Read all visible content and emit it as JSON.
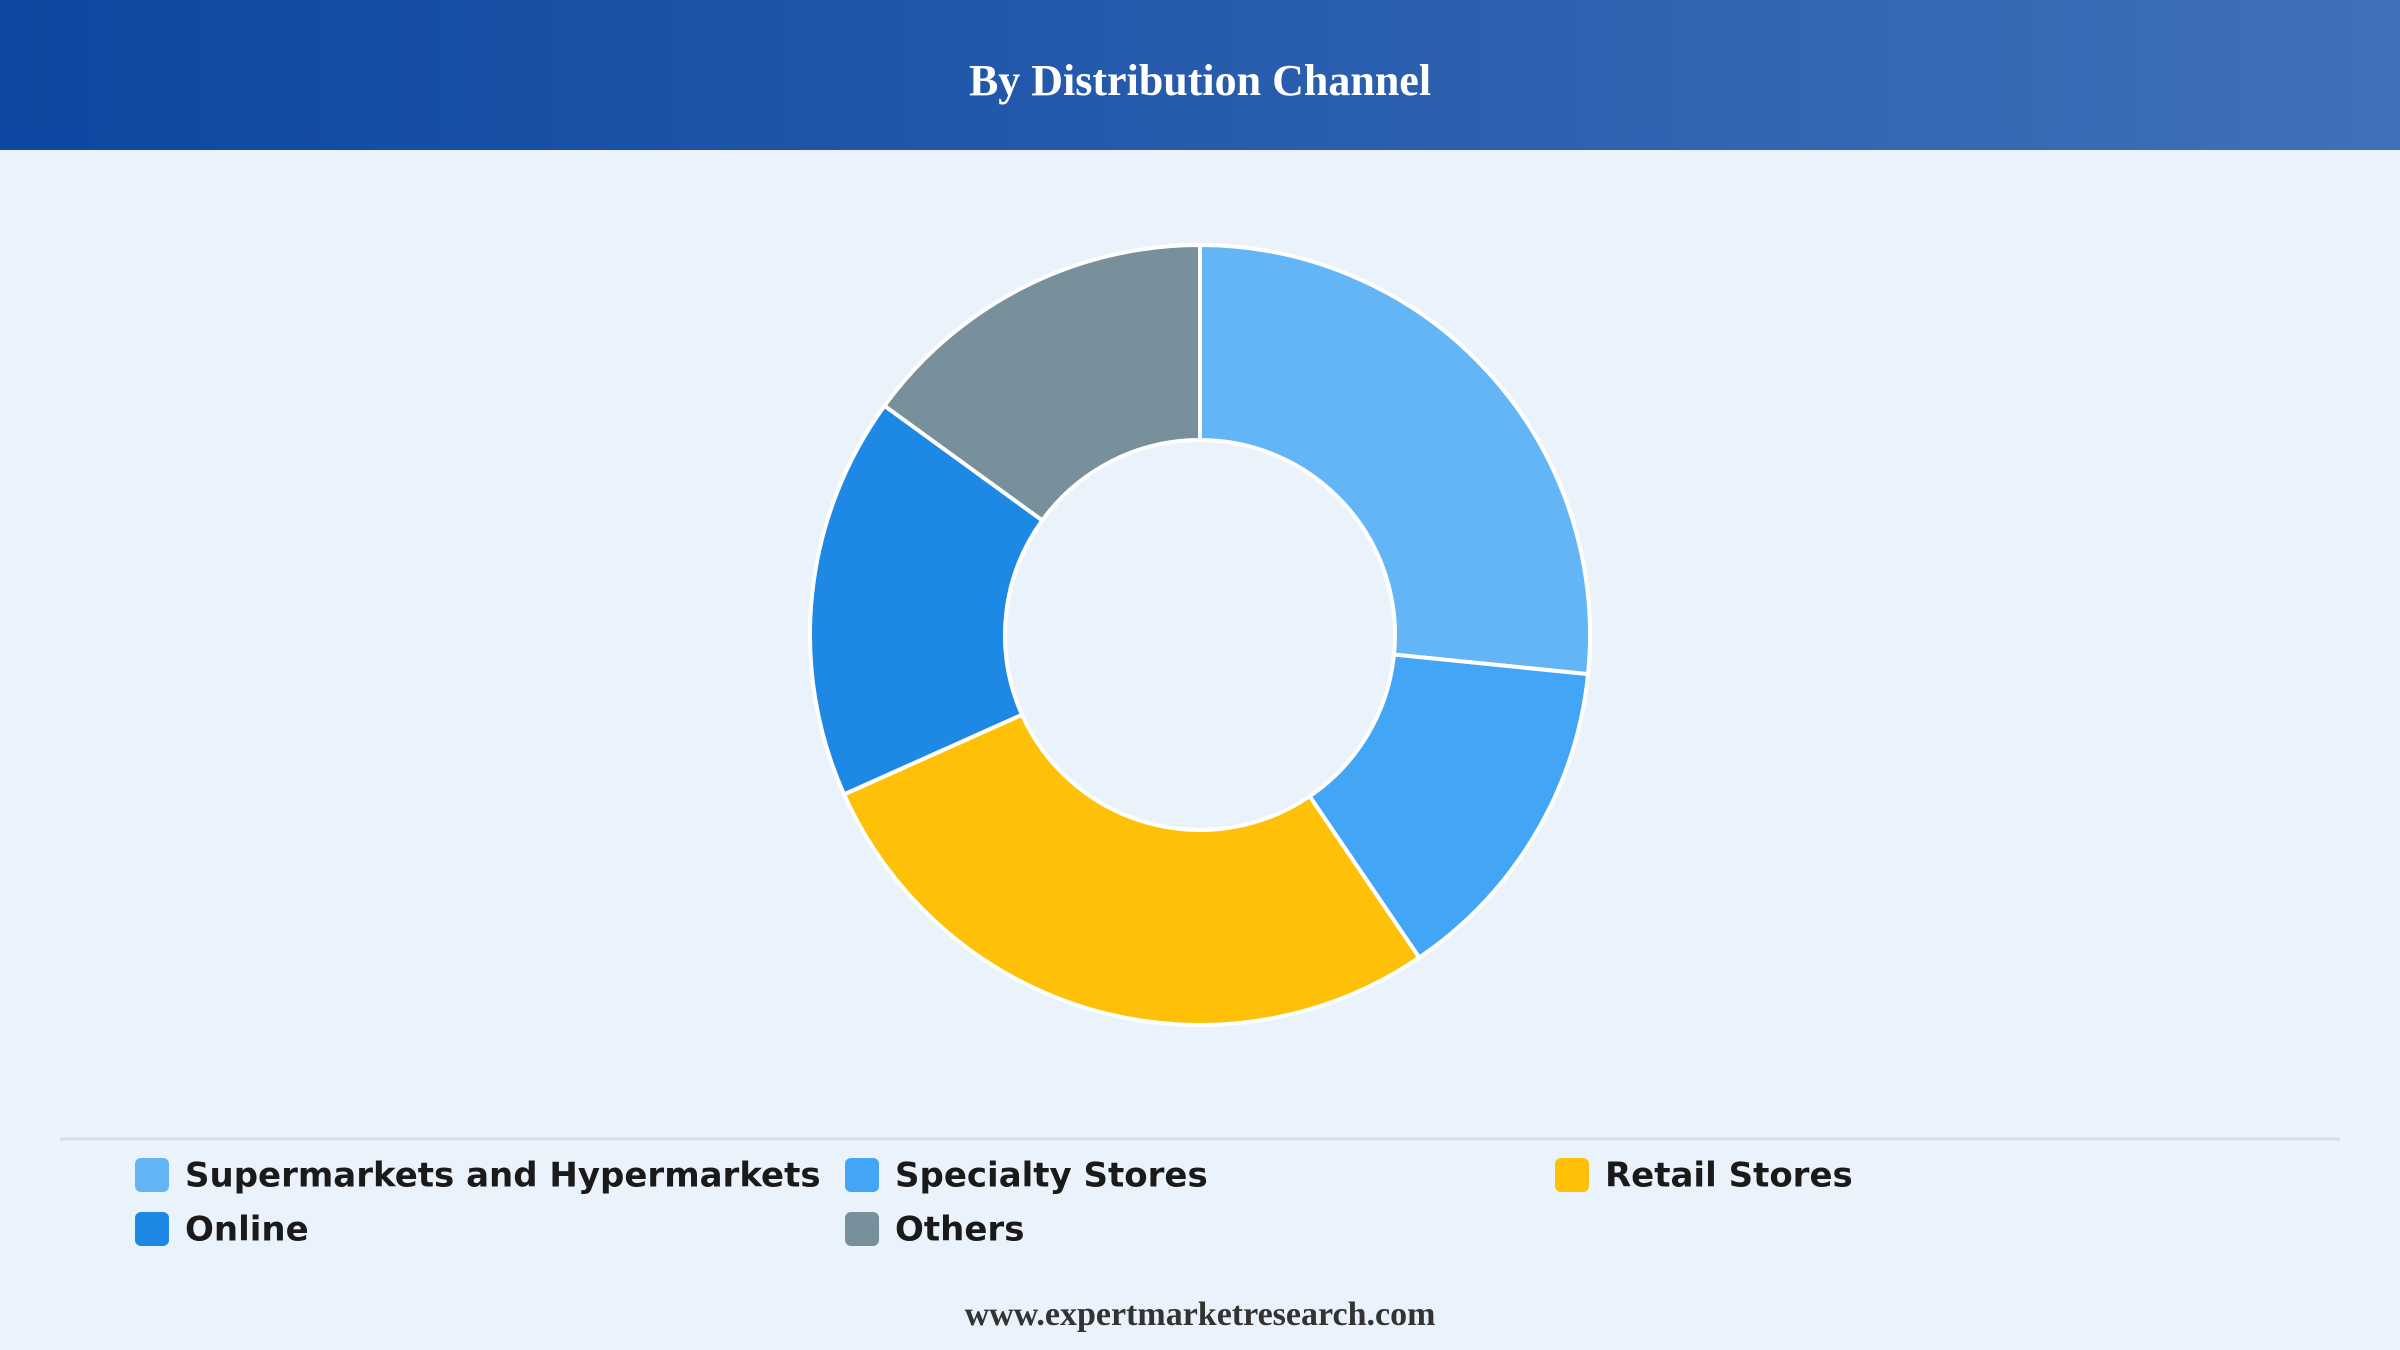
{
  "chart_data": {
    "type": "donut",
    "title": "By Distribution Channel",
    "categories": [
      "Supermarkets and Hypermarkets",
      "Specialty Stores",
      "Retail Stores",
      "Online",
      "Others"
    ],
    "values": [
      26.6,
      13.9,
      27.8,
      16.7,
      15.0
    ],
    "colors": [
      "#64b5f6",
      "#42a5f5",
      "#ffc107",
      "#1e88e5",
      "#78909c"
    ],
    "legend": "bottom",
    "source": "www.expertmarketresearch.com"
  }
}
